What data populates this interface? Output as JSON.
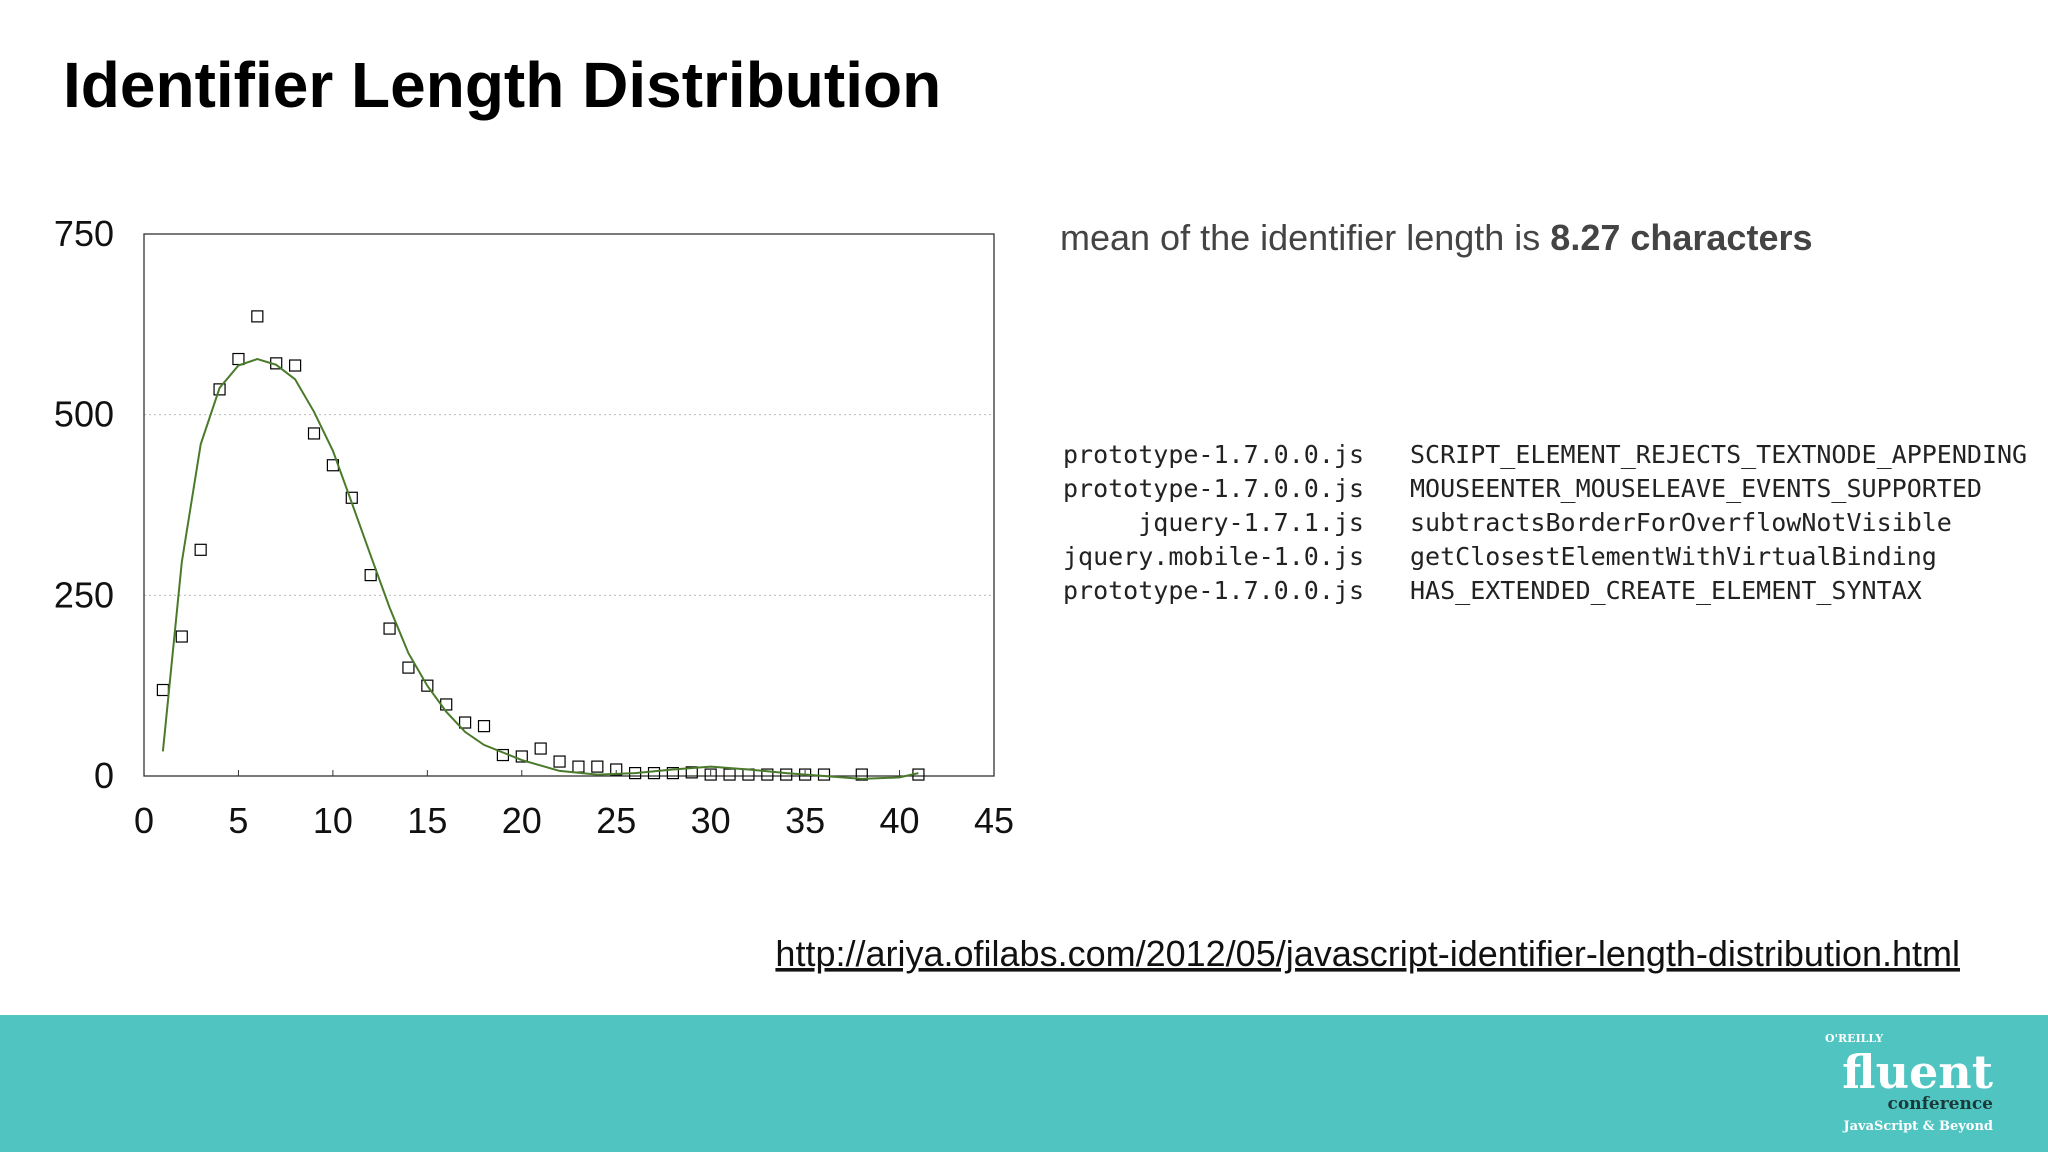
{
  "title": "Identifier Length Distribution",
  "chart_data": {
    "type": "scatter",
    "xlim": [
      0,
      45
    ],
    "xticks": [
      0,
      5,
      10,
      15,
      20,
      25,
      30,
      35,
      40,
      45
    ],
    "ylim": [
      0,
      750
    ],
    "yticks": [
      0,
      250,
      500,
      750
    ],
    "grid": true,
    "series": [
      {
        "type": "scatter",
        "color": "#000000",
        "x": [
          1,
          2,
          3,
          4,
          5,
          6,
          7,
          8,
          9,
          10,
          11,
          12,
          13,
          14,
          15,
          16,
          17,
          18,
          19,
          20,
          21,
          22,
          23,
          24,
          25,
          26,
          27,
          28,
          29,
          30,
          31,
          32,
          33,
          34,
          35,
          36,
          38,
          41
        ],
        "values": [
          119,
          193,
          313,
          535,
          577,
          636,
          571,
          568,
          474,
          430,
          385,
          278,
          204,
          150,
          125,
          99,
          74,
          69,
          29,
          27,
          38,
          20,
          13,
          13,
          9,
          4,
          4,
          4,
          5,
          2,
          2,
          2,
          2,
          2,
          2,
          2,
          2,
          2
        ]
      },
      {
        "type": "line",
        "color": "#4a7a2a",
        "x": [
          1,
          2,
          3,
          4,
          5,
          6,
          7,
          8,
          9,
          10,
          11,
          12,
          13,
          14,
          15,
          16,
          17,
          18,
          20,
          22,
          24,
          26,
          28,
          30,
          32,
          34,
          36,
          38,
          40,
          41
        ],
        "values": [
          34,
          296,
          459,
          537,
          568,
          577,
          569,
          549,
          504,
          450,
          378,
          305,
          233,
          170,
          125,
          89,
          61,
          43,
          22,
          7,
          2,
          4,
          9,
          13,
          9,
          4,
          0,
          -4,
          -2,
          4
        ]
      }
    ]
  },
  "mean": {
    "text": "mean of the identifier length is",
    "value": "8.27 characters"
  },
  "examples": [
    [
      "prototype-1.7.0.0.js",
      "SCRIPT_ELEMENT_REJECTS_TEXTNODE_APPENDING"
    ],
    [
      "prototype-1.7.0.0.js",
      "MOUSEENTER_MOUSELEAVE_EVENTS_SUPPORTED"
    ],
    [
      "jquery-1.7.1.js",
      "subtractsBorderForOverflowNotVisible"
    ],
    [
      "jquery.mobile-1.0.js",
      "getClosestElementWithVirtualBinding"
    ],
    [
      "prototype-1.7.0.0.js",
      "HAS_EXTENDED_CREATE_ELEMENT_SYNTAX"
    ]
  ],
  "url": "http://ariya.ofilabs.com/2012/05/javascript-identifier-length-distribution.html",
  "footer": {
    "publisher": "O'REILLY",
    "name": "fluent",
    "kind": "conference",
    "tagline": "JavaScript & Beyond"
  }
}
